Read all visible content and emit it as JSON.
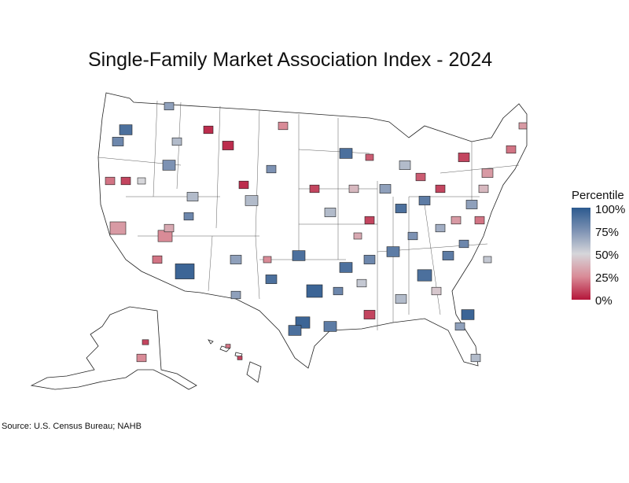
{
  "title": "Single-Family Market Association Index - 2024",
  "legend": {
    "title": "Percentile",
    "ticks": [
      "100%",
      "75%",
      "50%",
      "25%",
      "0%"
    ],
    "colors": {
      "100": "#2c5a8f",
      "75": "#7d92b3",
      "50": "#d6d6da",
      "25": "#d98b97",
      "0": "#b5163a"
    }
  },
  "source": "Source: U.S. Census Bureau; NAHB"
}
